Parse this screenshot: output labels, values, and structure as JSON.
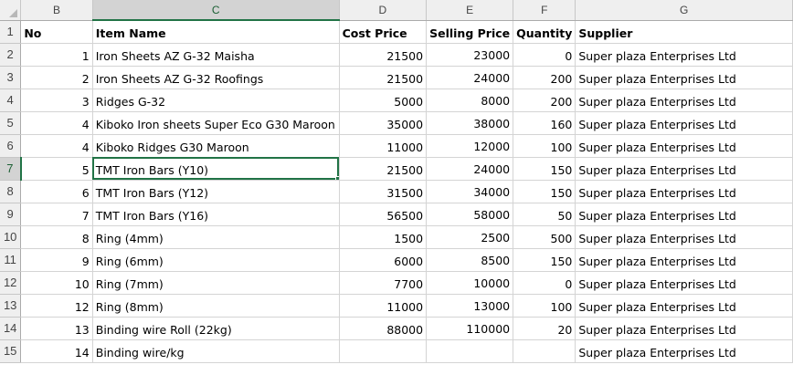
{
  "columns": [
    "B",
    "C",
    "D",
    "E",
    "F",
    "G"
  ],
  "header": {
    "row": "1",
    "no": "No",
    "item": "Item Name",
    "cost": "Cost Price",
    "sell": "Selling Price",
    "qty": "Quantity",
    "supplier": "Supplier"
  },
  "rows": [
    {
      "row": "2",
      "no": "1",
      "item": "Iron Sheets  AZ G-32 Maisha",
      "cost": "21500",
      "sell": "23000",
      "qty": "0",
      "supplier": "Super plaza Enterprises Ltd"
    },
    {
      "row": "3",
      "no": "2",
      "item": "Iron Sheets  AZ G-32 Roofings",
      "cost": "21500",
      "sell": "24000",
      "qty": "200",
      "supplier": "Super plaza Enterprises Ltd"
    },
    {
      "row": "4",
      "no": "3",
      "item": "Ridges G-32",
      "cost": "5000",
      "sell": "8000",
      "qty": "200",
      "supplier": "Super plaza Enterprises Ltd"
    },
    {
      "row": "5",
      "no": "4",
      "item": "Kiboko Iron sheets Super Eco G30 Maroon",
      "cost": "35000",
      "sell": "38000",
      "qty": "160",
      "supplier": "Super plaza Enterprises Ltd"
    },
    {
      "row": "6",
      "no": "4",
      "item": "Kiboko Ridges G30 Maroon",
      "cost": "11000",
      "sell": "12000",
      "qty": "100",
      "supplier": "Super plaza Enterprises Ltd"
    },
    {
      "row": "7",
      "no": "5",
      "item": "TMT Iron Bars (Y10)",
      "cost": "21500",
      "sell": "24000",
      "qty": "150",
      "supplier": "Super plaza Enterprises Ltd"
    },
    {
      "row": "8",
      "no": "6",
      "item": "TMT Iron Bars (Y12)",
      "cost": "31500",
      "sell": "34000",
      "qty": "150",
      "supplier": "Super plaza Enterprises Ltd"
    },
    {
      "row": "9",
      "no": "7",
      "item": "TMT Iron Bars (Y16)",
      "cost": "56500",
      "sell": "58000",
      "qty": "50",
      "supplier": "Super plaza Enterprises Ltd"
    },
    {
      "row": "10",
      "no": "8",
      "item": "Ring (4mm)",
      "cost": "1500",
      "sell": "2500",
      "qty": "500",
      "supplier": "Super plaza Enterprises Ltd"
    },
    {
      "row": "11",
      "no": "9",
      "item": "Ring (6mm)",
      "cost": "6000",
      "sell": "8500",
      "qty": "150",
      "supplier": "Super plaza Enterprises Ltd"
    },
    {
      "row": "12",
      "no": "10",
      "item": "Ring (7mm)",
      "cost": "7700",
      "sell": "10000",
      "qty": "0",
      "supplier": "Super plaza Enterprises Ltd"
    },
    {
      "row": "13",
      "no": "12",
      "item": "Ring (8mm)",
      "cost": "11000",
      "sell": "13000",
      "qty": "100",
      "supplier": "Super plaza Enterprises Ltd"
    },
    {
      "row": "14",
      "no": "13",
      "item": "Binding wire Roll (22kg)",
      "cost": "88000",
      "sell": "110000",
      "qty": "20",
      "supplier": "Super plaza Enterprises Ltd"
    },
    {
      "row": "15",
      "no": "14",
      "item": "Binding wire/kg",
      "cost": "",
      "sell": "",
      "qty": "",
      "supplier": "Super plaza Enterprises Ltd"
    }
  ],
  "selection": {
    "column": "C",
    "row": "7"
  },
  "colors": {
    "accent": "#217346",
    "header_bg": "#efefef",
    "selected_header_bg": "#d3d3d3",
    "gridline": "#d4d4d4"
  }
}
